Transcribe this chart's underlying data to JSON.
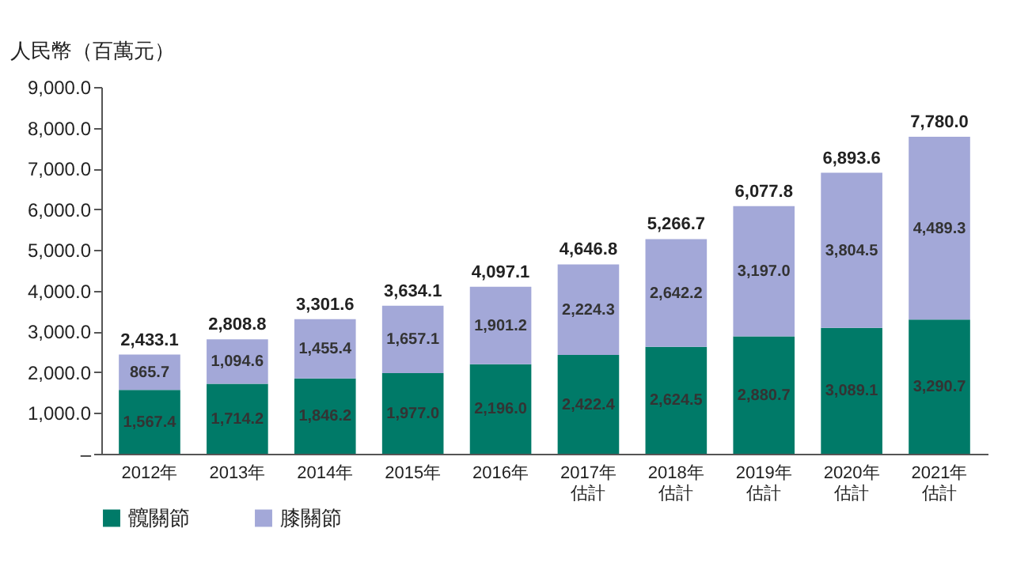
{
  "chart_data": {
    "type": "bar",
    "stacked": true,
    "ylabel": "人民幣（百萬元）",
    "categories": [
      "2012年",
      "2013年",
      "2014年",
      "2015年",
      "2016年",
      "2017年估計",
      "2018年估計",
      "2019年估計",
      "2020年估計",
      "2021年估計"
    ],
    "series": [
      {
        "name": "髖關節",
        "color": "#007a68",
        "values": [
          1567.4,
          1714.2,
          1846.2,
          1977.0,
          2196.0,
          2422.4,
          2624.5,
          2880.7,
          3089.1,
          3290.7
        ],
        "value_labels": [
          "1,567.4",
          "1,714.2",
          "1,846.2",
          "1,977.0",
          "2,196.0",
          "2,422.4",
          "2,624.5",
          "2,880.7",
          "3,089.1",
          "3,290.7"
        ]
      },
      {
        "name": "膝關節",
        "color": "#a3a8d8",
        "values": [
          865.7,
          1094.6,
          1455.4,
          1657.1,
          1901.2,
          2224.3,
          2642.2,
          3197.0,
          3804.5,
          4489.3
        ],
        "value_labels": [
          "865.7",
          "1,094.6",
          "1,455.4",
          "1,657.1",
          "1,901.2",
          "2,224.3",
          "2,642.2",
          "3,197.0",
          "3,804.5",
          "4,489.3"
        ]
      }
    ],
    "totals": [
      "2,433.1",
      "2,808.8",
      "3,301.6",
      "3,634.1",
      "4,097.1",
      "4,646.8",
      "5,266.7",
      "6,077.8",
      "6,893.6",
      "7,780.0"
    ],
    "ylim": [
      0,
      9000
    ],
    "yticks": [
      {
        "value": 0,
        "label": "–"
      },
      {
        "value": 1000,
        "label": "1,000.0"
      },
      {
        "value": 2000,
        "label": "2,000.0"
      },
      {
        "value": 3000,
        "label": "3,000.0"
      },
      {
        "value": 4000,
        "label": "4,000.0"
      },
      {
        "value": 5000,
        "label": "5,000.0"
      },
      {
        "value": 6000,
        "label": "6,000.0"
      },
      {
        "value": 7000,
        "label": "7,000.0"
      },
      {
        "value": 8000,
        "label": "8,000.0"
      },
      {
        "value": 9000,
        "label": "9,000.0"
      }
    ],
    "grid": false,
    "legend": "bottom"
  }
}
